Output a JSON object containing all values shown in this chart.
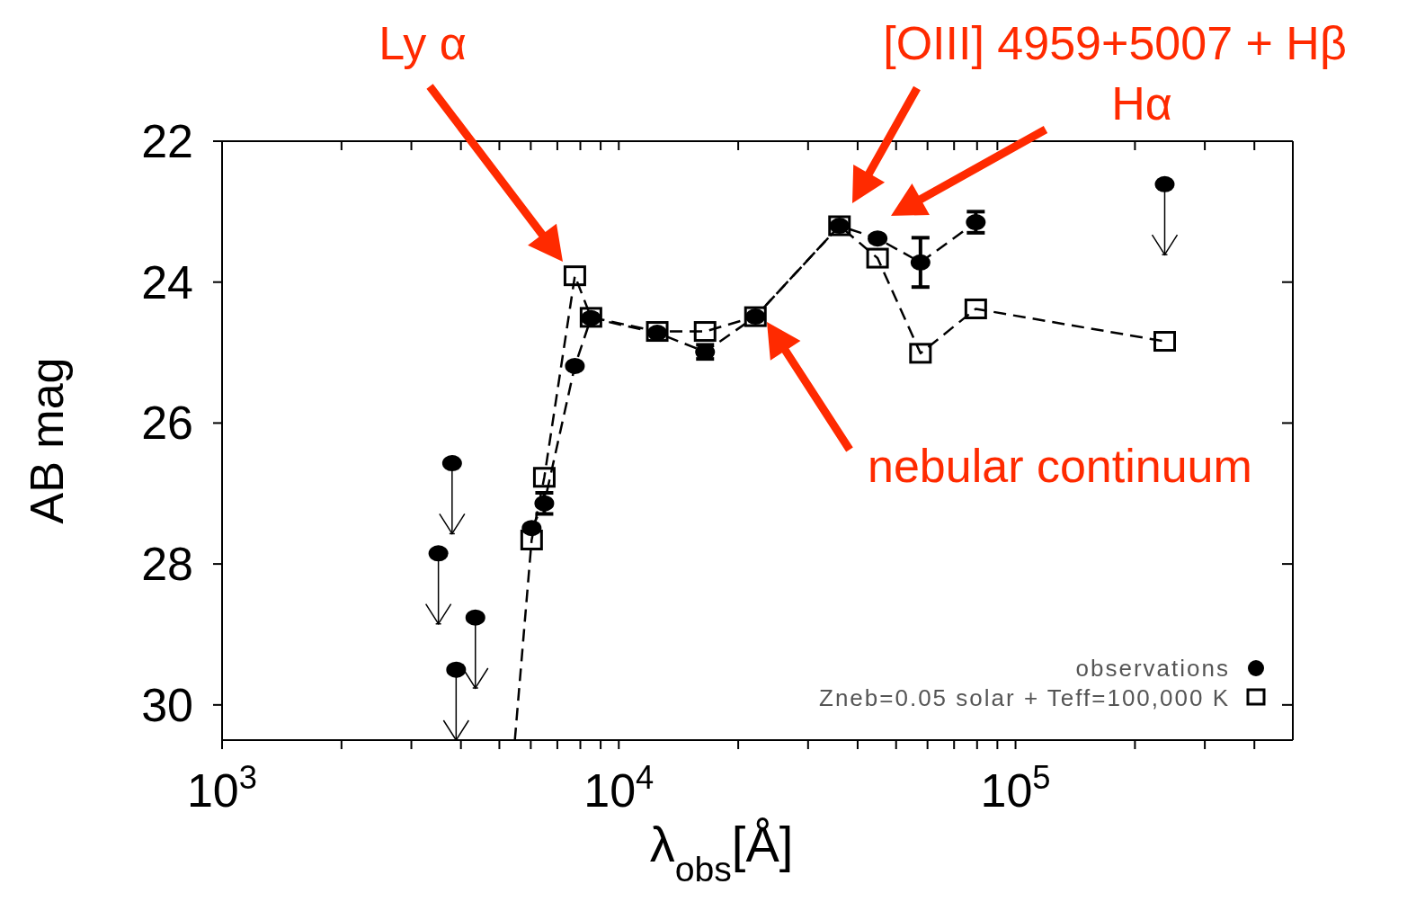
{
  "chart_data": {
    "type": "scatter",
    "xlabel": "λ$_{obs}$[Å]",
    "ylabel": "AB mag",
    "log": "x",
    "xlim": [
      1000,
      500000
    ],
    "ylim": [
      30.5,
      22
    ],
    "xticks": [
      {
        "value": 1000,
        "label": "10$^{3}$"
      },
      {
        "value": 2000,
        "label": null
      },
      {
        "value": 3000,
        "label": null
      },
      {
        "value": 4000,
        "label": null
      },
      {
        "value": 5000,
        "label": null
      },
      {
        "value": 6000,
        "label": null
      },
      {
        "value": 7000,
        "label": null
      },
      {
        "value": 8000,
        "label": null
      },
      {
        "value": 9000,
        "label": null
      },
      {
        "value": 10000,
        "label": "10$^{4}$"
      },
      {
        "value": 20000,
        "label": null
      },
      {
        "value": 30000,
        "label": null
      },
      {
        "value": 40000,
        "label": null
      },
      {
        "value": 50000,
        "label": null
      },
      {
        "value": 60000,
        "label": null
      },
      {
        "value": 70000,
        "label": null
      },
      {
        "value": 80000,
        "label": null
      },
      {
        "value": 90000,
        "label": null
      },
      {
        "value": 100000,
        "label": "10$^{5}$"
      },
      {
        "value": 200000,
        "label": null
      },
      {
        "value": 300000,
        "label": null
      },
      {
        "value": 400000,
        "label": null
      }
    ],
    "yticks": [
      22,
      24,
      26,
      28,
      30
    ],
    "grid": false,
    "legend": "bottom right",
    "series": [
      {
        "type": "line",
        "line_style": "dashed",
        "marker": "none",
        "color": "#000000",
        "x": [
          6030,
          6490,
          7750,
          8510,
          12500,
          16500,
          22100,
          36000,
          44900,
          57600,
          79400
        ],
        "values": [
          27.49,
          27.14,
          25.19,
          24.51,
          24.72,
          24.99,
          24.49,
          23.2,
          23.38,
          23.72,
          23.15
        ]
      },
      {
        "type": "line",
        "line_style": "dashed",
        "marker": "none",
        "color": "#000000",
        "x": [
          5470,
          6030,
          6490,
          7750,
          8510,
          12500,
          16500,
          22100,
          36000,
          44900,
          57600,
          79400,
          237700
        ],
        "values": [
          30.5,
          27.66,
          26.77,
          23.91,
          24.5,
          24.7,
          24.7,
          24.49,
          23.2,
          23.66,
          25.01,
          24.38,
          24.84
        ]
      },
      {
        "name": "observations",
        "type": "scatter",
        "marker": "circle",
        "color": "#000000",
        "x": [
          3510,
          3800,
          3890,
          4350,
          6030,
          6490,
          7750,
          8510,
          12500,
          16500,
          22100,
          36000,
          44900,
          57600,
          79400,
          237700
        ],
        "values": [
          27.85,
          26.57,
          29.5,
          28.76,
          27.49,
          27.14,
          25.19,
          24.51,
          24.72,
          24.99,
          24.49,
          23.2,
          23.38,
          23.72,
          23.15,
          22.61
        ],
        "errors": [
          [
            27.85,
            28.85
          ],
          [
            26.57,
            27.57
          ],
          [
            29.5,
            30.5
          ],
          [
            28.76,
            29.76
          ],
          null,
          0.15,
          null,
          null,
          null,
          0.1,
          null,
          null,
          null,
          0.35,
          0.15,
          [
            22.61,
            23.61
          ]
        ]
      },
      {
        "name": "Zneb=0.05 solar + Teff=100,000 K",
        "type": "scatter",
        "marker": "square",
        "color": "#000000",
        "x": [
          6030,
          6490,
          7750,
          8510,
          12500,
          16500,
          22100,
          36000,
          44900,
          57600,
          79400,
          237700
        ],
        "values": [
          27.66,
          26.77,
          23.91,
          24.5,
          24.7,
          24.7,
          24.49,
          23.2,
          23.66,
          25.01,
          24.38,
          24.84
        ]
      }
    ],
    "annotations": [
      "Ly α",
      "[OIII] 4959+5007 + Hβ",
      "Hα",
      "nebular continuum"
    ]
  }
}
